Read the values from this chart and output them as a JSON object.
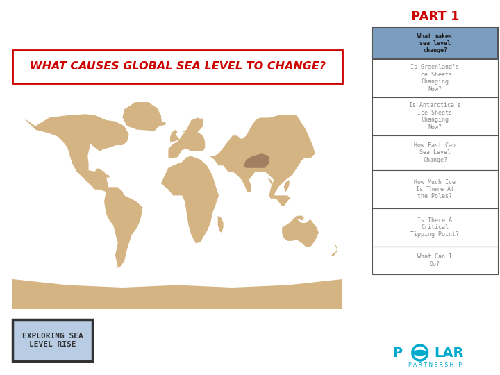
{
  "title": "PART 1",
  "main_heading": "WHAT CAUSES GLOBAL SEA LEVEL TO CHANGE?",
  "sidebar_items": [
    {
      "text": "What makes\nsea level\nchange?",
      "highlighted": true
    },
    {
      "text": "Is Greenland’s\nIce Sheets\nChanging\nNow?",
      "highlighted": false
    },
    {
      "text": "Is Antarctica’s\nIce Sheets\nChanging\nNow?",
      "highlighted": false
    },
    {
      "text": "How Fast Can\nSea Level\nChange?",
      "highlighted": false
    },
    {
      "text": "How Much Ice\nIs There At\nthe Poles?",
      "highlighted": false
    },
    {
      "text": "Is There A\nCritical\nTipping Point?",
      "highlighted": false
    },
    {
      "text": "What Can I\nDo?",
      "highlighted": false
    }
  ],
  "bottom_box_text": "EXPLORING SEA\nLEVEL RISE",
  "sidebar_highlight_color": "#7b9ec0",
  "sidebar_border_color": "#555555",
  "title_color": "#cc0000",
  "heading_color": "#cc0000",
  "heading_border_color": "#cc0000",
  "sidebar_text_color_highlighted": "#1a1a1a",
  "sidebar_text_color_normal": "#888888",
  "bottom_box_bg": "#b8cce4",
  "bottom_box_border": "#333333",
  "bottom_box_text_color": "#333333",
  "polar_text_color": "#00aacc",
  "background_color": "#ffffff",
  "map_ocean_color": "#7aadcc",
  "map_land_color": "#d4b483",
  "map_highland_color": "#a08060"
}
